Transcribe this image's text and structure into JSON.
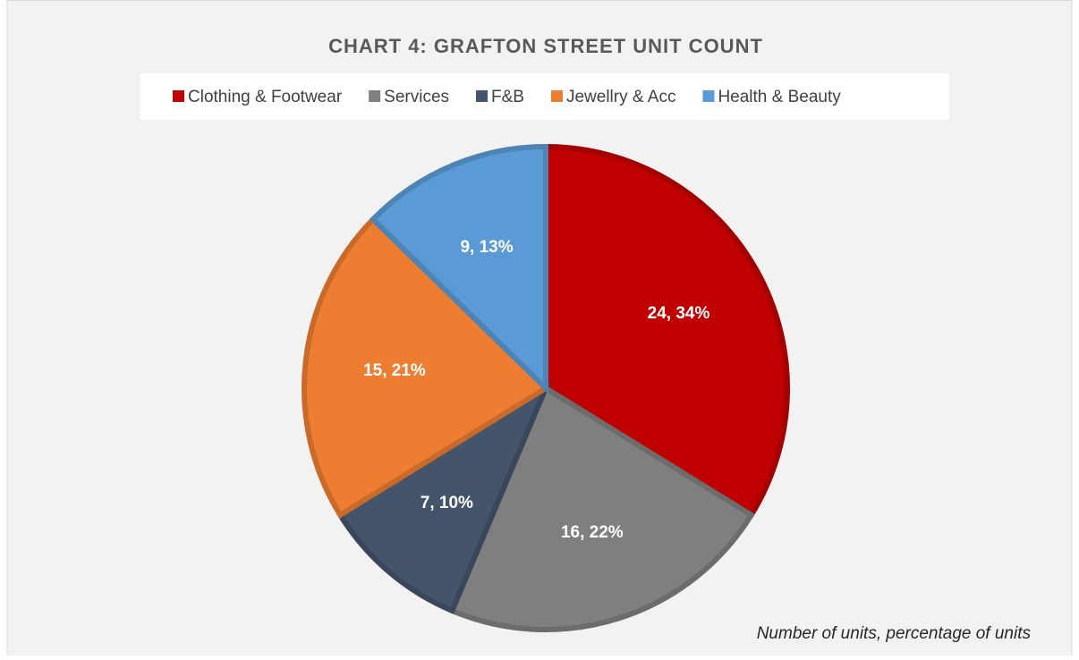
{
  "chart_data": {
    "type": "pie",
    "title": "CHART 4: GRAFTON STREET UNIT COUNT",
    "annotation": "Number of units, percentage of units",
    "categories": [
      "Clothing & Footwear",
      "Services",
      "F&B",
      "Jewellry & Acc",
      "Health & Beauty"
    ],
    "values": [
      24,
      16,
      7,
      15,
      9
    ],
    "value_labels": [
      "24, 34%",
      "16, 22%",
      "7, 10%",
      "15, 21%",
      "9, 13%"
    ],
    "colors": [
      "#c00000",
      "#7f7f7f",
      "#44546a",
      "#ed7d31",
      "#5b9bd5"
    ],
    "legend": "top"
  }
}
